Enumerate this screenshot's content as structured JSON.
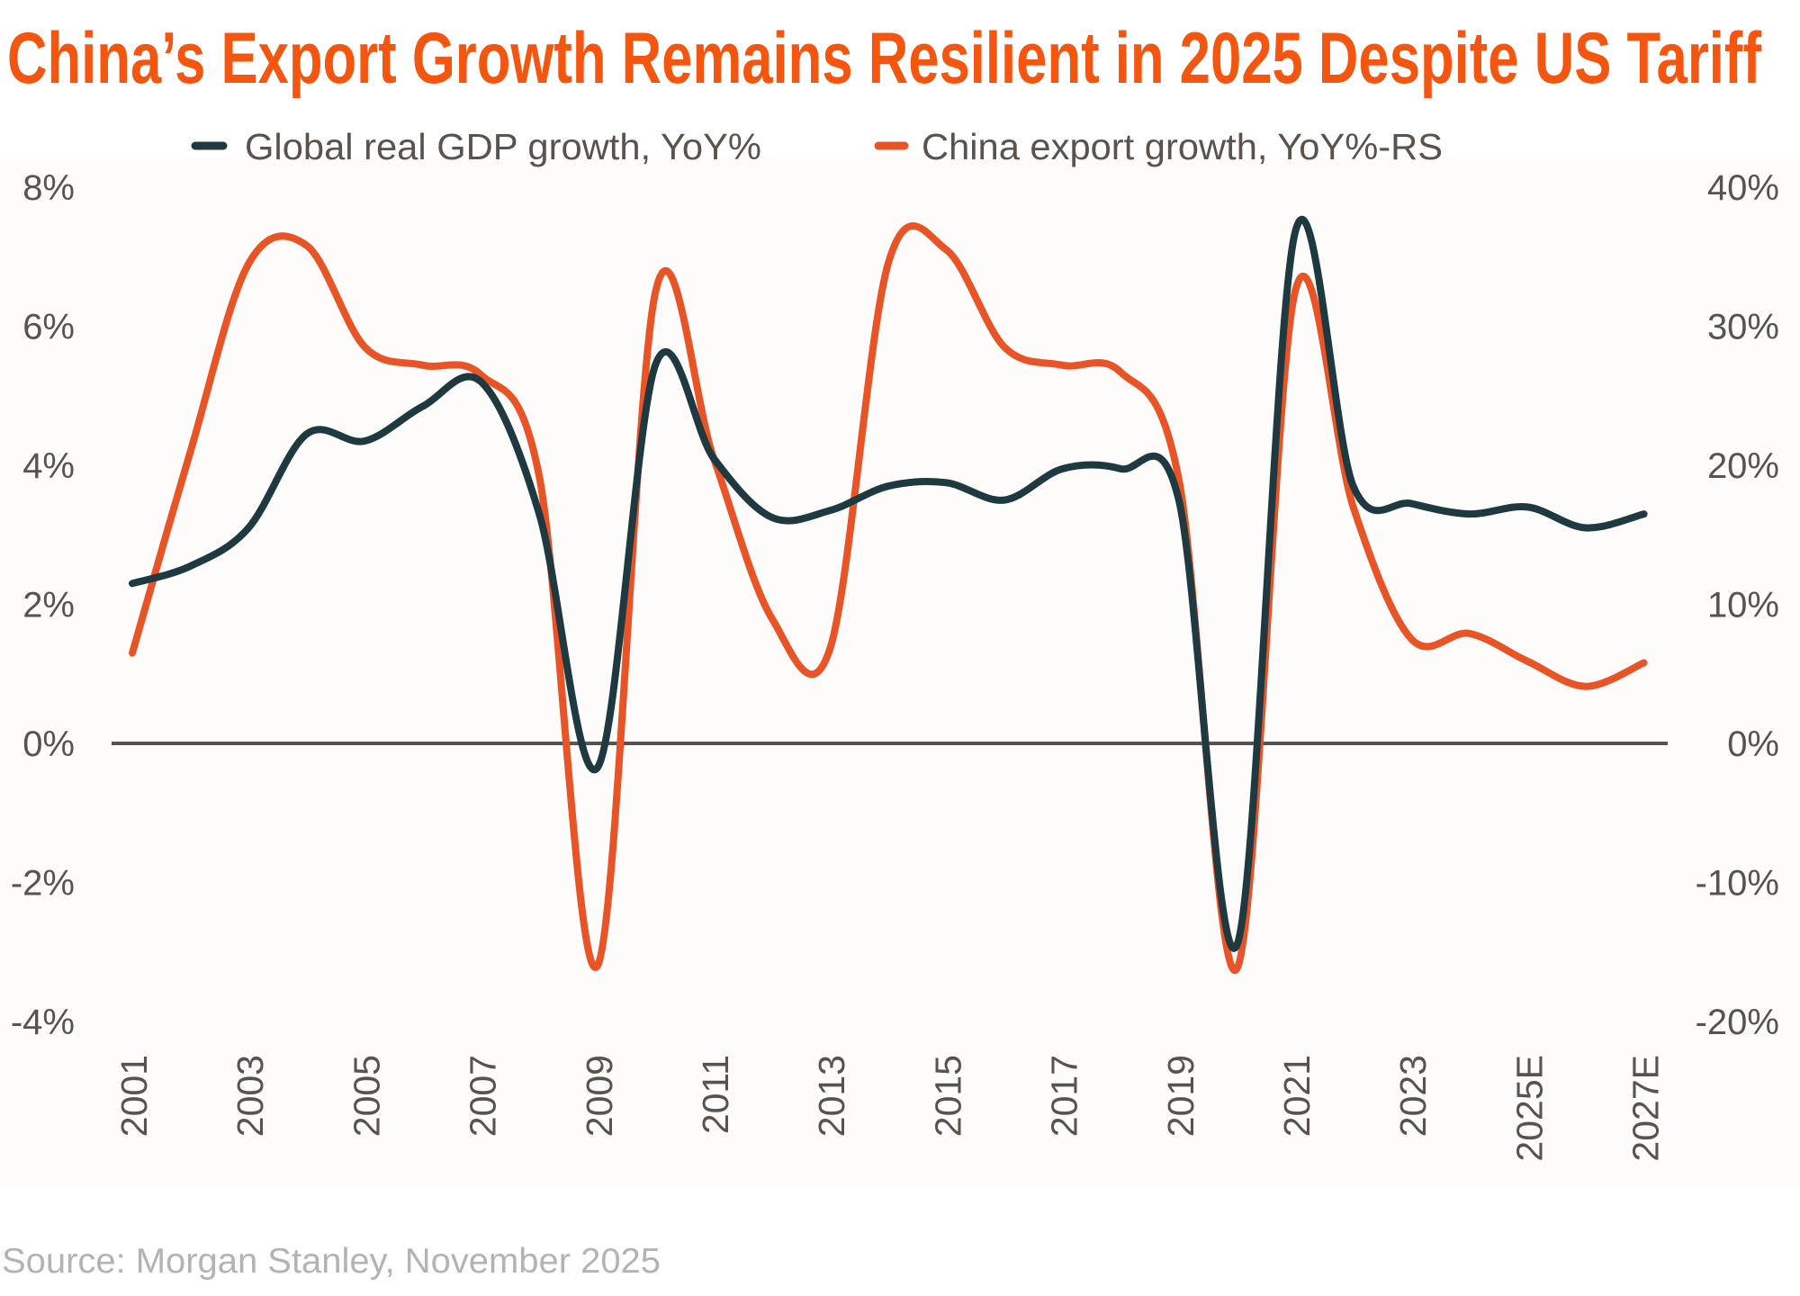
{
  "title": "China’s Export Growth Remains Resilient in 2025 Despite US Tariff",
  "source": "Source: Morgan Stanley, November 2025",
  "colors": {
    "title": "#f5560f",
    "gdp_series": "#1f3940",
    "export_series": "#e85426",
    "axis_text": "#5a524d",
    "zero_line": "#5a524e",
    "source_text": "#b3b3b3",
    "plot_background": "#fdfcfa"
  },
  "legend": {
    "items": [
      {
        "label": "Global real GDP growth, YoY%",
        "color": "#1f3940"
      },
      {
        "label": "China export growth, YoY%-RS",
        "color": "#e85426"
      }
    ]
  },
  "chart_data": {
    "type": "line",
    "title": "China’s Export Growth Remains Resilient in 2025 Despite US Tariff",
    "xlabel": "",
    "ylabel": "",
    "ylabel_right": "",
    "x": [
      2001,
      2002,
      2003,
      2004,
      2005,
      2006,
      2007,
      2008,
      2009,
      2010,
      2011,
      2012,
      2013,
      2014,
      2015,
      2016,
      2017,
      2018,
      2019,
      2020,
      2021,
      2022,
      2023,
      2024,
      2025,
      2026,
      2027
    ],
    "x_ticks": [
      {
        "x": 2001,
        "label": "2001"
      },
      {
        "x": 2003,
        "label": "2003"
      },
      {
        "x": 2005,
        "label": "2005"
      },
      {
        "x": 2007,
        "label": "2007"
      },
      {
        "x": 2009,
        "label": "2009"
      },
      {
        "x": 2011,
        "label": "2011"
      },
      {
        "x": 2013,
        "label": "2013"
      },
      {
        "x": 2015,
        "label": "2015"
      },
      {
        "x": 2017,
        "label": "2017"
      },
      {
        "x": 2019,
        "label": "2019"
      },
      {
        "x": 2021,
        "label": "2021"
      },
      {
        "x": 2023,
        "label": "2023"
      },
      {
        "x": 2025,
        "label": "2025E"
      },
      {
        "x": 2027,
        "label": "2027E"
      }
    ],
    "series": [
      {
        "name": "Global real GDP growth, YoY%",
        "axis": "left",
        "color": "#1f3940",
        "values": [
          2.3,
          2.55,
          3.1,
          4.45,
          4.35,
          4.85,
          5.2,
          3.3,
          -0.35,
          5.45,
          4.1,
          3.25,
          3.35,
          3.7,
          3.75,
          3.5,
          3.95,
          3.95,
          3.5,
          -2.9,
          7.35,
          3.7,
          3.45,
          3.3,
          3.4,
          3.1,
          3.3
        ]
      },
      {
        "name": "China export growth, YoY%-RS",
        "axis": "right",
        "color": "#e85426",
        "values": [
          6.5,
          21.0,
          34.5,
          35.8,
          28.5,
          27.2,
          26.5,
          19.2,
          -16.0,
          32.5,
          20.5,
          9.0,
          6.8,
          34.5,
          35.5,
          28.5,
          27.2,
          26.7,
          19.0,
          -16.2,
          32.5,
          17.0,
          7.5,
          7.9,
          5.9,
          4.1,
          5.8
        ]
      }
    ],
    "left_axis": {
      "range": [
        -4,
        8
      ],
      "ticks": [
        {
          "value": 8,
          "label": "8%"
        },
        {
          "value": 6,
          "label": "6%"
        },
        {
          "value": 4,
          "label": "4%"
        },
        {
          "value": 2,
          "label": "2%"
        },
        {
          "value": 0,
          "label": "0%"
        },
        {
          "value": -2,
          "label": "-2%"
        },
        {
          "value": -4,
          "label": "-4%"
        }
      ]
    },
    "right_axis": {
      "range": [
        -20,
        40
      ],
      "ticks": [
        {
          "value": 40,
          "label": "40%"
        },
        {
          "value": 30,
          "label": "30%"
        },
        {
          "value": 20,
          "label": "20%"
        },
        {
          "value": 10,
          "label": "10%"
        },
        {
          "value": 0,
          "label": "0%"
        },
        {
          "value": -10,
          "label": "-10%"
        },
        {
          "value": -20,
          "label": "-20%"
        }
      ]
    },
    "zero_line": true,
    "grid": false,
    "legend_position": "top-center"
  }
}
